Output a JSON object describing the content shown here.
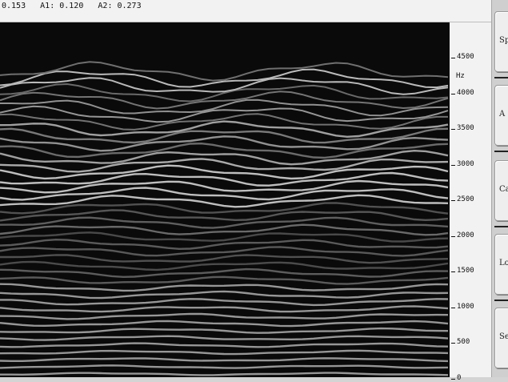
{
  "status": {
    "readout": "0.153   A1: 0.120   A2: 0.273"
  },
  "axis": {
    "unit": "Hz",
    "ticks": [
      "4500",
      "4000",
      "3500",
      "3000",
      "2500",
      "2000",
      "1500",
      "1000",
      "500",
      "0"
    ]
  },
  "buttons": [
    {
      "label": "Sp"
    },
    {
      "label": "A"
    },
    {
      "label": "Ca"
    },
    {
      "label": "Log"
    },
    {
      "label": "Se"
    }
  ]
}
